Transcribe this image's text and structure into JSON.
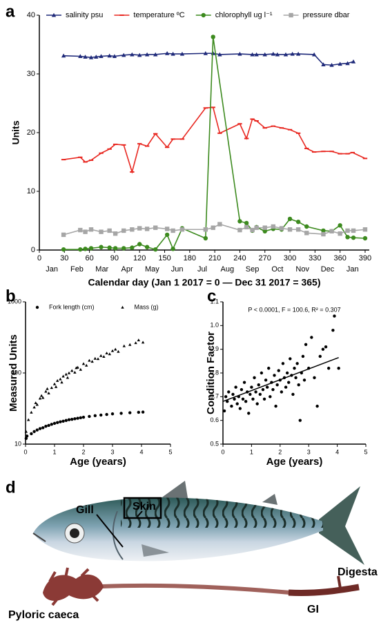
{
  "chart_data": [
    {
      "type": "line",
      "panel_label": "a",
      "x_label": "Calendar day (Jan 1 2017 = 0 — Dec 31 2017 = 365)",
      "y_label": "Units",
      "xlim": [
        0,
        395
      ],
      "ylim": [
        0,
        40
      ],
      "xticks": [
        0,
        30,
        60,
        90,
        120,
        150,
        180,
        210,
        240,
        270,
        300,
        330,
        360,
        390
      ],
      "yticks": [
        0,
        10,
        20,
        30,
        40
      ],
      "month_labels": [
        "Jan",
        "Feb",
        "Mar",
        "Apr",
        "May",
        "Jun",
        "Jul",
        "Aug",
        "Sep",
        "Oct",
        "Nov",
        "Dec",
        "Jan"
      ],
      "legend": "upper center",
      "series": [
        {
          "name": "salinity psu",
          "color": "#1f2a7a",
          "marker": "triangle",
          "x": [
            29,
            49,
            55,
            62,
            68,
            74,
            84,
            90,
            101,
            111,
            120,
            129,
            139,
            153,
            160,
            171,
            199,
            208,
            216,
            240,
            255,
            260,
            270,
            280,
            285,
            295,
            303,
            310,
            329,
            340,
            350,
            360,
            369,
            376
          ],
          "values": [
            33.1,
            33.0,
            32.9,
            32.8,
            32.9,
            33.0,
            33.1,
            33.0,
            33.2,
            33.3,
            33.2,
            33.3,
            33.3,
            33.5,
            33.4,
            33.4,
            33.5,
            33.5,
            33.3,
            33.4,
            33.3,
            33.3,
            33.3,
            33.4,
            33.3,
            33.3,
            33.4,
            33.4,
            33.3,
            31.6,
            31.5,
            31.7,
            31.8,
            32.1
          ]
        },
        {
          "name": "temperature ºC",
          "color": "#e8261f",
          "marker": "dash",
          "x": [
            29,
            49,
            55,
            62,
            74,
            84,
            91,
            101,
            111,
            120,
            129,
            139,
            153,
            160,
            171,
            199,
            208,
            216,
            240,
            248,
            255,
            260,
            270,
            280,
            290,
            300,
            310,
            320,
            329,
            340,
            350,
            360,
            369,
            375,
            390
          ],
          "values": [
            15.4,
            15.8,
            15.0,
            15.3,
            16.5,
            17.2,
            18.0,
            17.9,
            13.3,
            18.1,
            17.7,
            19.8,
            17.5,
            18.9,
            18.9,
            24.2,
            24.3,
            19.9,
            21.5,
            19.0,
            22.3,
            22.0,
            20.8,
            21.1,
            20.8,
            20.5,
            19.9,
            17.3,
            16.7,
            16.8,
            16.8,
            16.4,
            16.4,
            16.6,
            15.6
          ]
        },
        {
          "name": "chlorophyll ug l⁻¹",
          "color": "#3c8a1e",
          "marker": "circle",
          "x": [
            29,
            49,
            55,
            62,
            74,
            84,
            91,
            101,
            111,
            120,
            129,
            139,
            153,
            160,
            171,
            199,
            208,
            240,
            248,
            255,
            260,
            270,
            280,
            290,
            300,
            310,
            320,
            340,
            350,
            360,
            369,
            376,
            390
          ],
          "values": [
            0.1,
            0.1,
            0.2,
            0.3,
            0.5,
            0.4,
            0.3,
            0.3,
            0.4,
            1.0,
            0.5,
            0.1,
            2.6,
            0.2,
            3.7,
            2.0,
            36.3,
            4.9,
            4.6,
            3.3,
            3.9,
            3.2,
            3.6,
            3.5,
            5.3,
            4.8,
            4.0,
            3.3,
            3.2,
            4.2,
            2.2,
            2.1,
            2.0
          ]
        },
        {
          "name": "pressure dbar",
          "color": "#a6a6a6",
          "marker": "square",
          "x": [
            29,
            49,
            55,
            62,
            74,
            84,
            91,
            101,
            111,
            120,
            129,
            139,
            153,
            160,
            171,
            199,
            208,
            216,
            240,
            248,
            255,
            260,
            270,
            280,
            290,
            300,
            310,
            320,
            340,
            350,
            360,
            369,
            376,
            390
          ],
          "values": [
            2.6,
            3.4,
            3.1,
            3.5,
            3.1,
            3.3,
            2.8,
            3.3,
            3.5,
            3.7,
            3.6,
            3.8,
            3.6,
            3.3,
            3.5,
            3.5,
            3.8,
            4.4,
            3.4,
            3.9,
            3.4,
            3.8,
            3.8,
            4.0,
            3.7,
            3.5,
            3.5,
            2.9,
            2.7,
            3.2,
            2.8,
            3.3,
            3.3,
            3.5
          ]
        }
      ]
    },
    {
      "type": "scatter",
      "panel_label": "b",
      "x_label": "Age (years)",
      "y_label": "Measured Units",
      "xlim": [
        0,
        5
      ],
      "ylim": [
        10,
        1000
      ],
      "yscale": "log",
      "xticks": [
        0,
        1,
        2,
        3,
        4,
        5
      ],
      "yticks": [
        10,
        100,
        1000
      ],
      "legend": "upper left",
      "series": [
        {
          "name": "Fork length (cm)",
          "color": "#000000",
          "marker": "circle",
          "x": [
            0.02,
            0.05,
            0.2,
            0.3,
            0.4,
            0.5,
            0.6,
            0.7,
            0.8,
            0.9,
            1.0,
            1.1,
            1.2,
            1.3,
            1.4,
            1.5,
            1.6,
            1.7,
            1.8,
            1.9,
            2.0,
            2.2,
            2.4,
            2.6,
            2.8,
            3.0,
            3.3,
            3.6,
            3.9,
            4.05
          ],
          "values": [
            12,
            13,
            14,
            15,
            15.8,
            16.5,
            17,
            17.8,
            18.3,
            19,
            19.6,
            20.1,
            20.6,
            21,
            21.5,
            22,
            22.3,
            22.7,
            23.1,
            23.5,
            23.9,
            24.5,
            25.1,
            25.6,
            26.1,
            26.6,
            27.1,
            27.6,
            28,
            28.2
          ]
        },
        {
          "name": "Mass (g)",
          "color": "#000000",
          "marker": "triangle",
          "x": [
            0.02,
            0.1,
            0.2,
            0.3,
            0.35,
            0.4,
            0.5,
            0.55,
            0.6,
            0.7,
            0.75,
            0.8,
            0.9,
            1.0,
            1.05,
            1.1,
            1.2,
            1.25,
            1.3,
            1.4,
            1.45,
            1.5,
            1.6,
            1.7,
            1.75,
            1.8,
            1.9,
            2.0,
            2.1,
            2.2,
            2.3,
            2.4,
            2.5,
            2.6,
            2.7,
            2.8,
            2.9,
            3.0,
            3.1,
            3.2,
            3.4,
            3.6,
            3.8,
            3.9,
            4.05
          ],
          "values": [
            15,
            22,
            28,
            33,
            38,
            36,
            44,
            48,
            45,
            55,
            60,
            52,
            62,
            70,
            64,
            78,
            82,
            74,
            90,
            96,
            86,
            100,
            108,
            102,
            118,
            120,
            112,
            135,
            128,
            150,
            145,
            160,
            158,
            175,
            170,
            190,
            185,
            205,
            215,
            200,
            240,
            250,
            265,
            290,
            270
          ]
        }
      ]
    },
    {
      "type": "scatter",
      "panel_label": "c",
      "x_label": "Age (years)",
      "y_label": "Condition Factor",
      "annotation": "P < 0.0001, F = 100.6, R² = 0.307",
      "xlim": [
        0,
        5
      ],
      "ylim": [
        0.5,
        1.1
      ],
      "xticks": [
        0,
        1,
        2,
        3,
        4,
        5
      ],
      "yticks": [
        0.5,
        0.6,
        0.7,
        0.8,
        0.9,
        {
          "value": 1,
          "label": "1.0"
        },
        1.1
      ],
      "fit_line": {
        "x": [
          0,
          4.05
        ],
        "values": [
          0.68,
          0.865
        ]
      },
      "series": [
        {
          "color": "#000000",
          "marker": "circle",
          "x": [
            0.05,
            0.1,
            0.15,
            0.2,
            0.3,
            0.35,
            0.4,
            0.45,
            0.5,
            0.55,
            0.6,
            0.65,
            0.7,
            0.75,
            0.8,
            0.85,
            0.9,
            0.95,
            1.0,
            1.05,
            1.1,
            1.15,
            1.2,
            1.25,
            1.3,
            1.35,
            1.4,
            1.45,
            1.5,
            1.55,
            1.6,
            1.65,
            1.7,
            1.75,
            1.8,
            1.85,
            1.9,
            1.95,
            2.0,
            2.05,
            2.1,
            2.15,
            2.2,
            2.25,
            2.3,
            2.35,
            2.4,
            2.45,
            2.5,
            2.55,
            2.6,
            2.65,
            2.7,
            2.75,
            2.8,
            2.85,
            2.9,
            3.0,
            3.1,
            3.2,
            3.3,
            3.4,
            3.5,
            3.6,
            3.7,
            3.85,
            3.9,
            4.05
          ],
          "values": [
            0.64,
            0.7,
            0.68,
            0.72,
            0.66,
            0.71,
            0.69,
            0.74,
            0.67,
            0.7,
            0.65,
            0.73,
            0.69,
            0.76,
            0.68,
            0.72,
            0.63,
            0.71,
            0.74,
            0.69,
            0.78,
            0.72,
            0.67,
            0.75,
            0.71,
            0.8,
            0.73,
            0.69,
            0.77,
            0.74,
            0.82,
            0.7,
            0.76,
            0.73,
            0.79,
            0.66,
            0.75,
            0.81,
            0.77,
            0.72,
            0.84,
            0.78,
            0.74,
            0.8,
            0.76,
            0.86,
            0.79,
            0.71,
            0.82,
            0.78,
            0.84,
            0.75,
            0.6,
            0.8,
            0.87,
            0.77,
            0.92,
            0.82,
            0.95,
            0.78,
            0.66,
            0.87,
            0.9,
            0.91,
            0.82,
            0.98,
            1.04,
            0.82
          ]
        }
      ]
    }
  ],
  "photo": {
    "panel_label": "d",
    "labels": {
      "gill": "Gill",
      "skin": "Skin",
      "digesta": "Digesta",
      "pyloric_caeca": "Pyloric caeca",
      "gi": "GI"
    }
  }
}
